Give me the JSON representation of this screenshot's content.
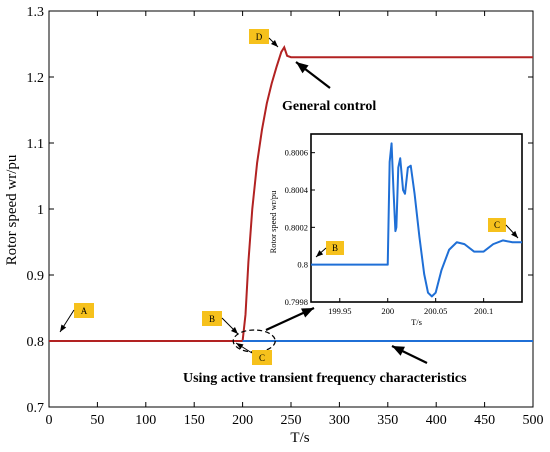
{
  "chart_data": {
    "type": "line",
    "xlabel": "T/s",
    "ylabel": "Rotor speed wr/pu",
    "xlim": [
      0,
      500
    ],
    "ylim": [
      0.7,
      1.3
    ],
    "x_ticks": [
      "0",
      "50",
      "100",
      "150",
      "200",
      "250",
      "300",
      "350",
      "400",
      "450",
      "500"
    ],
    "y_ticks": [
      "0.7",
      "0.8",
      "0.9",
      "1",
      "1.1",
      "1.2",
      "1.3"
    ],
    "grid": false,
    "series": [
      {
        "color": "#b22222",
        "points": [
          [
            0,
            0.8
          ],
          [
            200,
            0.8
          ],
          [
            203,
            0.84
          ],
          [
            206,
            0.92
          ],
          [
            210,
            1.0
          ],
          [
            215,
            1.07
          ],
          [
            220,
            1.12
          ],
          [
            225,
            1.16
          ],
          [
            230,
            1.19
          ],
          [
            235,
            1.215
          ],
          [
            240,
            1.238
          ],
          [
            243,
            1.245
          ],
          [
            246,
            1.232
          ],
          [
            250,
            1.23
          ],
          [
            500,
            1.23
          ]
        ]
      },
      {
        "color": "#1f6fd6",
        "points": [
          [
            200,
            0.8
          ],
          [
            500,
            0.8
          ]
        ]
      }
    ],
    "annotations": [
      "General control",
      "Using active transient frequency characteristics"
    ],
    "markers": [
      "A",
      "B",
      "C",
      "D"
    ],
    "inset": {
      "xlabel": "T/s",
      "ylabel": "Rotor speed wr/pu",
      "xlim": [
        199.92,
        200.14
      ],
      "ylim": [
        0.7998,
        0.8007
      ],
      "x_ticks": [
        "199.95",
        "200",
        "200.05",
        "200.1"
      ],
      "y_ticks": [
        "0.7998",
        "0.8",
        "0.8002",
        "0.8004",
        "0.8006"
      ],
      "markers": [
        "B",
        "C"
      ],
      "series": [
        {
          "color": "#1f6fd6",
          "points": [
            [
              199.92,
              0.8
            ],
            [
              200.0,
              0.8
            ],
            [
              200.002,
              0.80055
            ],
            [
              200.004,
              0.80065
            ],
            [
              200.006,
              0.8004
            ],
            [
              200.008,
              0.80018
            ],
            [
              200.009,
              0.8002
            ],
            [
              200.011,
              0.80052
            ],
            [
              200.013,
              0.80057
            ],
            [
              200.016,
              0.8004
            ],
            [
              200.018,
              0.80038
            ],
            [
              200.021,
              0.80052
            ],
            [
              200.024,
              0.80053
            ],
            [
              200.028,
              0.80038
            ],
            [
              200.033,
              0.80015
            ],
            [
              200.038,
              0.79995
            ],
            [
              200.042,
              0.79985
            ],
            [
              200.046,
              0.79983
            ],
            [
              200.05,
              0.79985
            ],
            [
              200.056,
              0.79997
            ],
            [
              200.064,
              0.80008
            ],
            [
              200.072,
              0.80012
            ],
            [
              200.08,
              0.80011
            ],
            [
              200.09,
              0.80007
            ],
            [
              200.1,
              0.80007
            ],
            [
              200.11,
              0.80011
            ],
            [
              200.12,
              0.80013
            ],
            [
              200.13,
              0.80012
            ],
            [
              200.14,
              0.80012
            ]
          ]
        }
      ]
    }
  }
}
